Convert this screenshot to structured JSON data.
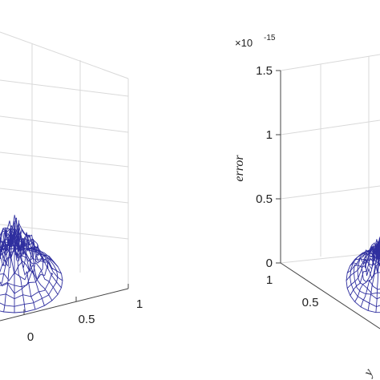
{
  "colors": {
    "mesh": "#2f2f9f",
    "grid": "#d9d9d9",
    "axis": "#444444",
    "text": "#222222"
  },
  "chart_data": [
    {
      "type": "surface",
      "panel": "left",
      "grid": true,
      "x_tick_labels": [
        "0",
        "0.5",
        "1"
      ],
      "x_ticks": [
        0,
        0.5,
        1
      ],
      "title": "",
      "xlabel": "",
      "ylabel": "",
      "zlabel": ""
    },
    {
      "type": "surface",
      "panel": "right",
      "grid": true,
      "zlabel": "error",
      "z_exponent_prefix": "×10",
      "z_exponent_power": "-15",
      "z_tick_labels": [
        "0",
        "0.5",
        "1",
        "1.5"
      ],
      "z_ticks": [
        0,
        0.5,
        1,
        1.5
      ],
      "zlim": [
        0,
        1.5
      ],
      "x_tick_labels": [
        "1",
        "0.5"
      ],
      "x_ticks": [
        1,
        0.5
      ],
      "y_tick_label": "y",
      "title": "",
      "xlabel": ""
    }
  ]
}
